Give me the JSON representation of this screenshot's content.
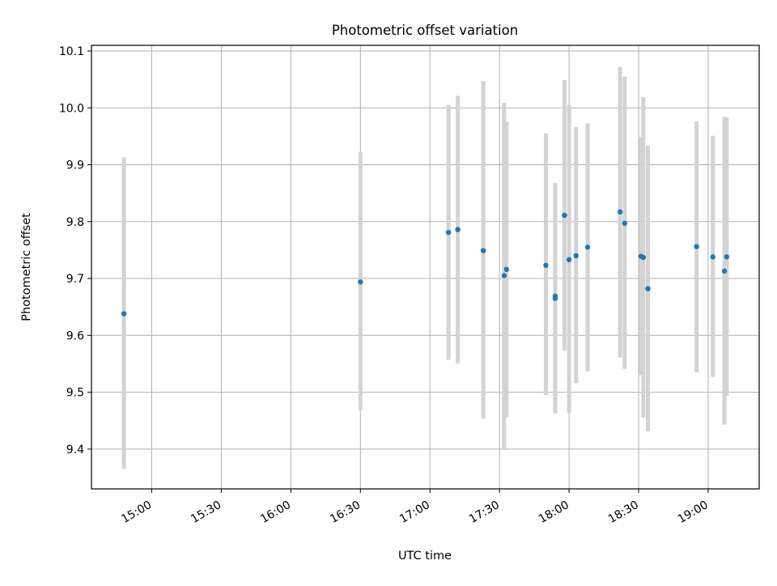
{
  "chart_data": {
    "type": "scatter",
    "title": "Photometric offset variation",
    "xlabel": "UTC time",
    "ylabel": "Photometric offset",
    "x_axis_kind": "time",
    "xlim": [
      "14:34",
      "19:22"
    ],
    "ylim": [
      9.33,
      10.11
    ],
    "x_ticks": [
      "15:00",
      "15:30",
      "16:00",
      "16:30",
      "17:00",
      "17:30",
      "18:00",
      "18:30",
      "19:00"
    ],
    "y_ticks": [
      "9.4",
      "9.5",
      "9.6",
      "9.7",
      "9.8",
      "9.9",
      "10.0",
      "10.1"
    ],
    "grid": true,
    "point_color": "#1f77b4",
    "errorbar_color": "#d3d3d3",
    "series": [
      {
        "points": [
          {
            "x": "14:48",
            "y": 9.638,
            "ylow": 9.365,
            "yhigh": 9.913
          },
          {
            "x": "16:30",
            "y": 9.694,
            "ylow": 9.468,
            "yhigh": 9.922
          },
          {
            "x": "17:08",
            "y": 9.781,
            "ylow": 9.557,
            "yhigh": 10.005
          },
          {
            "x": "17:12",
            "y": 9.786,
            "ylow": 9.55,
            "yhigh": 10.021
          },
          {
            "x": "17:23",
            "y": 9.749,
            "ylow": 9.453,
            "yhigh": 10.047
          },
          {
            "x": "17:32",
            "y": 9.705,
            "ylow": 9.4,
            "yhigh": 10.009
          },
          {
            "x": "17:33",
            "y": 9.716,
            "ylow": 9.456,
            "yhigh": 9.976
          },
          {
            "x": "17:50",
            "y": 9.723,
            "ylow": 9.495,
            "yhigh": 9.955
          },
          {
            "x": "17:54",
            "y": 9.669,
            "ylow": 9.463,
            "yhigh": 9.868
          },
          {
            "x": "17:54",
            "y": 9.665,
            "ylow": 9.463,
            "yhigh": 9.868
          },
          {
            "x": "17:58",
            "y": 9.811,
            "ylow": 9.573,
            "yhigh": 10.049
          },
          {
            "x": "18:00",
            "y": 9.733,
            "ylow": 9.464,
            "yhigh": 10.005
          },
          {
            "x": "18:03",
            "y": 9.74,
            "ylow": 9.516,
            "yhigh": 9.966
          },
          {
            "x": "18:08",
            "y": 9.755,
            "ylow": 9.537,
            "yhigh": 9.973
          },
          {
            "x": "18:22",
            "y": 9.817,
            "ylow": 9.561,
            "yhigh": 10.072
          },
          {
            "x": "18:24",
            "y": 9.797,
            "ylow": 9.541,
            "yhigh": 10.055
          },
          {
            "x": "18:31",
            "y": 9.739,
            "ylow": 9.53,
            "yhigh": 9.949
          },
          {
            "x": "18:32",
            "y": 9.737,
            "ylow": 9.455,
            "yhigh": 10.019
          },
          {
            "x": "18:34",
            "y": 9.682,
            "ylow": 9.431,
            "yhigh": 9.934
          },
          {
            "x": "18:55",
            "y": 9.756,
            "ylow": 9.535,
            "yhigh": 9.976
          },
          {
            "x": "19:02",
            "y": 9.738,
            "ylow": 9.527,
            "yhigh": 9.951
          },
          {
            "x": "19:07",
            "y": 9.713,
            "ylow": 9.443,
            "yhigh": 9.984
          },
          {
            "x": "19:08",
            "y": 9.738,
            "ylow": 9.493,
            "yhigh": 9.983
          }
        ]
      }
    ]
  }
}
